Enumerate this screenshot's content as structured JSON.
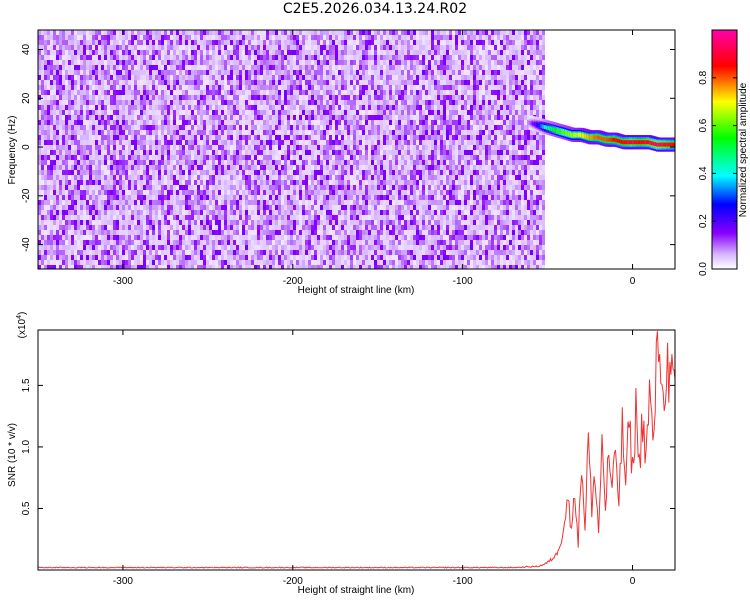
{
  "title": "C2E5.2026.034.13.24.R02",
  "chart_data": [
    {
      "type": "heatmap",
      "xlabel": "Height of straight line (km)",
      "ylabel": "Frequency (Hz)",
      "xlim": [
        -350,
        25
      ],
      "ylim": [
        -50,
        48
      ],
      "xticks": [
        -300,
        -200,
        -100,
        0
      ],
      "yticks": [
        -40,
        -20,
        0,
        20,
        40
      ],
      "noise_region": {
        "x_range": [
          -350,
          -53
        ],
        "y_range": [
          -50,
          48
        ],
        "typical_amplitude": [
          0.0,
          0.1
        ]
      },
      "signal_track": {
        "x": [
          -60,
          -55,
          -50,
          -45,
          -40,
          -35,
          -30,
          -25,
          -20,
          -15,
          -10,
          -5,
          0,
          5,
          10,
          15,
          20,
          25
        ],
        "freq": [
          10,
          9,
          8,
          7,
          6,
          5,
          5,
          4,
          4,
          3,
          3,
          2,
          2,
          2,
          2,
          1,
          1,
          1
        ],
        "amplitude": [
          0.1,
          0.25,
          0.45,
          0.55,
          0.6,
          0.65,
          0.7,
          0.75,
          0.8,
          0.8,
          0.85,
          0.85,
          0.9,
          0.85,
          0.9,
          0.95,
          0.9,
          0.85
        ]
      },
      "colorbar": {
        "label": "Normalized spectral amplitude",
        "ticks": [
          0.0,
          0.2,
          0.4,
          0.6,
          0.8
        ],
        "range": [
          0.0,
          1.0
        ],
        "colors": [
          "#ffffff",
          "#8800ff",
          "#0000ff",
          "#00ffff",
          "#00ff00",
          "#ffff00",
          "#ff0000",
          "#ff00aa"
        ]
      },
      "grid": false
    },
    {
      "type": "line",
      "xlabel": "Height of straight line (km)",
      "ylabel": "SNR (10 * v/v)",
      "scale_label": "(x10",
      "scale_exponent": "4",
      "scale_close": ")",
      "xlim": [
        -350,
        25
      ],
      "ylim": [
        0,
        1.95
      ],
      "xticks": [
        -300,
        -200,
        -100,
        0
      ],
      "yticks": [
        0.5,
        1.0,
        1.5
      ],
      "color": "#ee3333",
      "series": [
        {
          "x": [
            -350,
            -300,
            -250,
            -200,
            -150,
            -100,
            -70,
            -55,
            -50,
            -45,
            -42,
            -40,
            -38,
            -36,
            -34,
            -32,
            -30,
            -28,
            -26,
            -24,
            -22,
            -20,
            -18,
            -16,
            -14,
            -12,
            -10,
            -8,
            -6,
            -4,
            -2,
            0,
            2,
            4,
            6,
            8,
            10,
            12,
            14,
            16,
            18,
            20,
            22,
            25
          ],
          "y": [
            0.02,
            0.02,
            0.02,
            0.02,
            0.02,
            0.02,
            0.02,
            0.03,
            0.06,
            0.12,
            0.25,
            0.4,
            0.6,
            0.3,
            0.7,
            0.2,
            0.9,
            0.35,
            1.1,
            0.45,
            0.8,
            0.3,
            1.05,
            0.5,
            0.95,
            0.6,
            1.0,
            0.55,
            1.15,
            0.7,
            1.2,
            0.8,
            1.3,
            0.85,
            1.25,
            0.9,
            1.45,
            1.0,
            1.6,
            1.95,
            1.3,
            1.75,
            1.5,
            1.55
          ]
        }
      ],
      "grid": false
    }
  ]
}
